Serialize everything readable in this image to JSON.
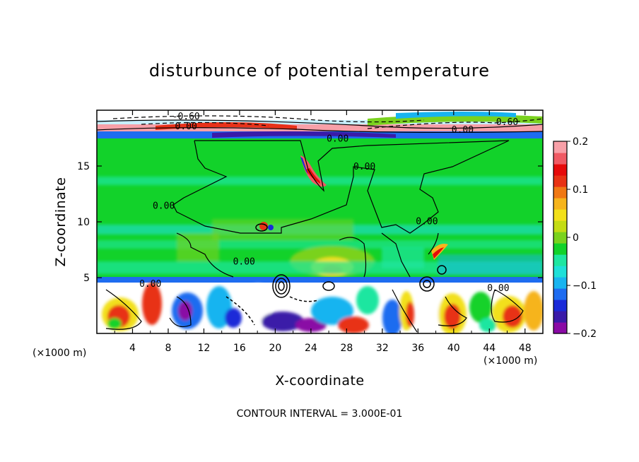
{
  "chart_data": {
    "type": "heatmap",
    "title": "disturbunce of potential temperature",
    "xlabel": "X-coordinate",
    "ylabel": "Z-coordinate",
    "x_unit": "(×1000 m)",
    "xlim": [
      0,
      50
    ],
    "ylim": [
      0,
      20
    ],
    "x_ticks": [
      4,
      8,
      12,
      16,
      20,
      24,
      28,
      32,
      36,
      40,
      44,
      48
    ],
    "y_ticks": [
      5,
      10,
      15
    ],
    "colorbar": {
      "min": -0.2,
      "max": 0.2,
      "ticks": [
        {
          "value": 0.2,
          "label": "0.2"
        },
        {
          "value": 0.1,
          "label": "0.1"
        },
        {
          "value": 0,
          "label": "0"
        },
        {
          "value": -0.1,
          "label": "−0.1"
        },
        {
          "value": -0.2,
          "label": "−0.2"
        }
      ],
      "colors": [
        "#8a0aa5",
        "#3a1aa8",
        "#1a2ad8",
        "#1e6cf0",
        "#18b4f0",
        "#1ee0d8",
        "#1ee6a0",
        "#12d22a",
        "#7ad21e",
        "#c4dc14",
        "#f2e01a",
        "#f6b41c",
        "#f07814",
        "#e83214",
        "#e60a0a",
        "#f05a64",
        "#f8a0a8"
      ]
    },
    "contour_labels": [
      {
        "text": "-0.60",
        "x": 10,
        "y": 19.5
      },
      {
        "text": "0.00",
        "x": 10,
        "y": 18.6
      },
      {
        "text": "0.60",
        "x": 46,
        "y": 19.0
      },
      {
        "text": "0.00",
        "x": 41,
        "y": 18.3
      },
      {
        "text": "0.00",
        "x": 27,
        "y": 17.5
      },
      {
        "text": "0.00",
        "x": 30,
        "y": 15.0
      },
      {
        "text": "0.00",
        "x": 7.5,
        "y": 11.5
      },
      {
        "text": "0.00",
        "x": 37,
        "y": 10.1
      },
      {
        "text": "0.00",
        "x": 16.5,
        "y": 6.5
      },
      {
        "text": "0.00",
        "x": 6,
        "y": 4.5
      },
      {
        "text": "0.00",
        "x": 45,
        "y": 4.1
      }
    ]
  },
  "footer": "CONTOUR INTERVAL = 3.000E-01"
}
